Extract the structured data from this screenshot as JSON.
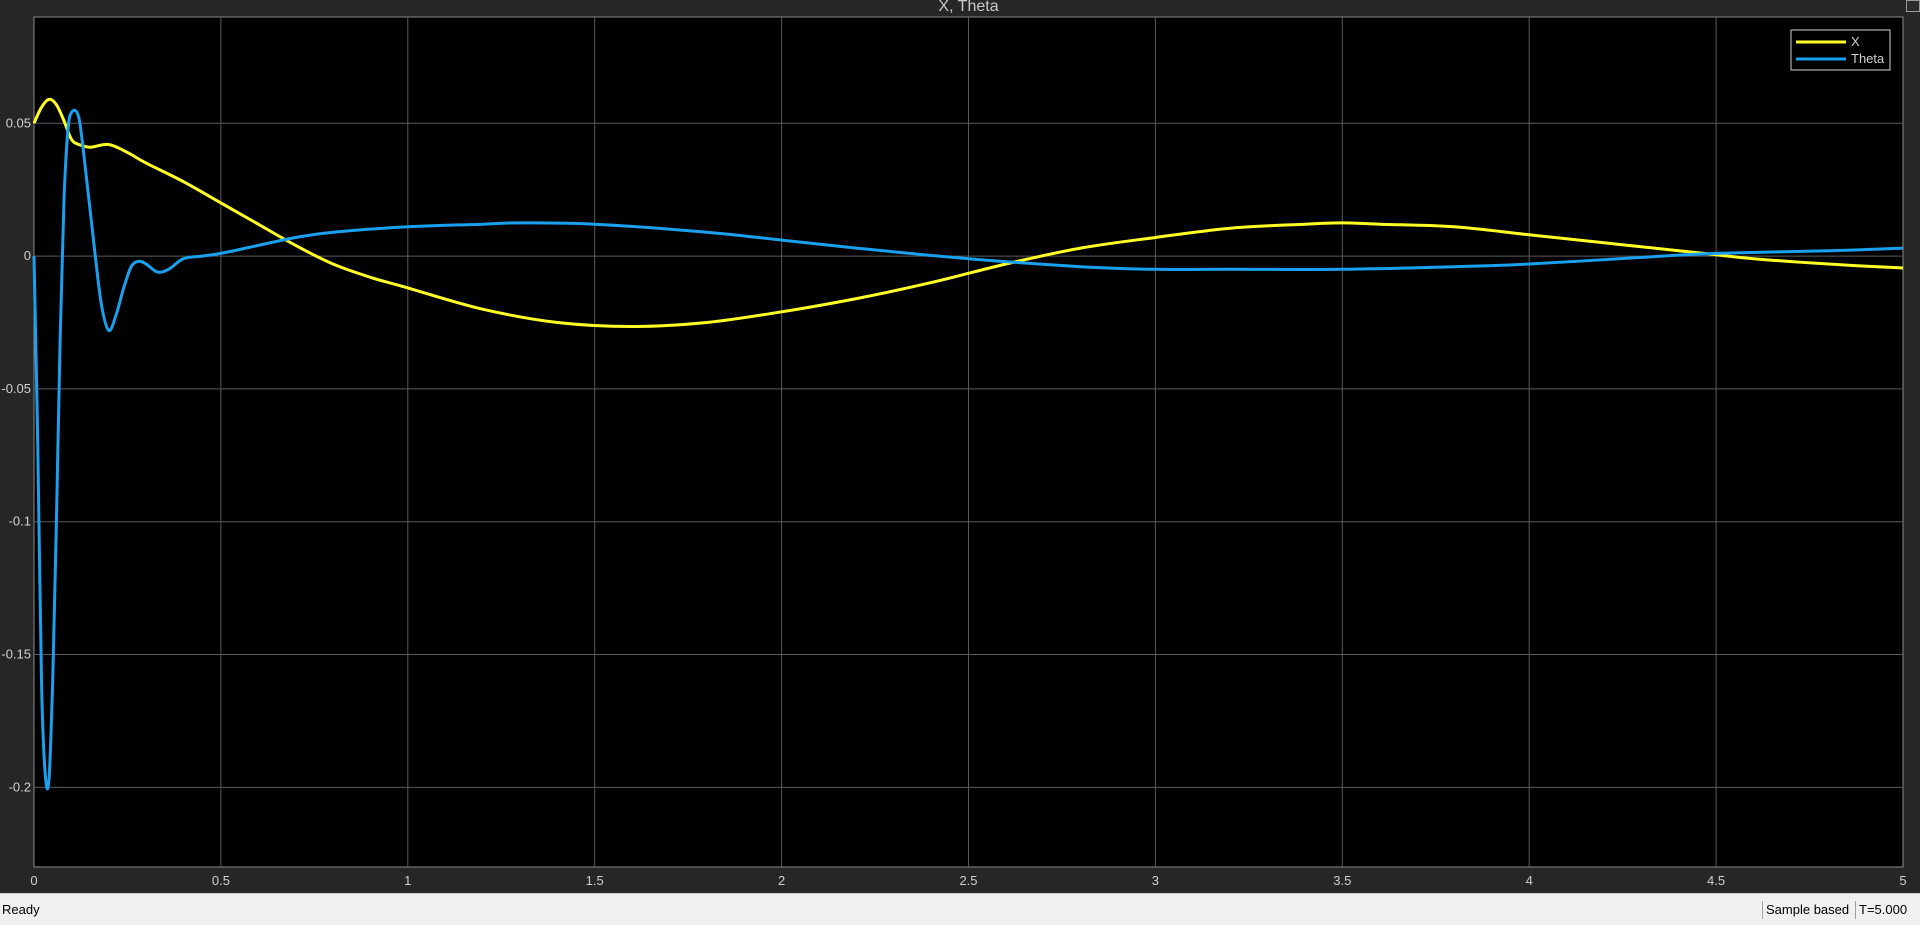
{
  "window": {
    "status": "Ready",
    "sample_mode": "Sample based",
    "time_display": "T=5.000"
  },
  "colors": {
    "plot_bg": "#000000",
    "frame_bg": "#262626",
    "grid": "#5a5a5a",
    "series_x": "#ffff26",
    "series_theta": "#1aa0ee"
  },
  "chart_data": {
    "type": "line",
    "title": "X, Theta",
    "xlabel": "",
    "ylabel": "",
    "xlim": [
      0,
      5
    ],
    "ylim": [
      -0.23,
      0.09
    ],
    "xticks": [
      0,
      0.5,
      1,
      1.5,
      2,
      2.5,
      3,
      3.5,
      4,
      4.5,
      5
    ],
    "xtick_labels": [
      "0",
      "0.5",
      "1",
      "1.5",
      "2",
      "2.5",
      "3",
      "3.5",
      "4",
      "4.5",
      "5"
    ],
    "yticks": [
      0.05,
      0,
      -0.05,
      -0.1,
      -0.15,
      -0.2
    ],
    "ytick_labels": [
      "0.05",
      "0",
      "-0.05",
      "-0.1",
      "-0.15",
      "-0.2"
    ],
    "grid": true,
    "legend_position": "top-right",
    "series": [
      {
        "name": "X",
        "color": "#ffff26",
        "x": [
          0,
          0.02,
          0.04,
          0.06,
          0.08,
          0.1,
          0.12,
          0.15,
          0.2,
          0.25,
          0.3,
          0.4,
          0.5,
          0.6,
          0.7,
          0.8,
          0.9,
          1.0,
          1.2,
          1.4,
          1.6,
          1.8,
          2.0,
          2.2,
          2.4,
          2.6,
          2.8,
          3.0,
          3.2,
          3.4,
          3.5,
          3.6,
          3.8,
          4.0,
          4.2,
          4.4,
          4.5,
          4.6,
          4.8,
          5.0
        ],
        "y": [
          0.05,
          0.056,
          0.059,
          0.057,
          0.051,
          0.044,
          0.042,
          0.041,
          0.042,
          0.039,
          0.035,
          0.028,
          0.02,
          0.012,
          0.004,
          -0.003,
          -0.008,
          -0.012,
          -0.02,
          -0.025,
          -0.0265,
          -0.025,
          -0.021,
          -0.016,
          -0.01,
          -0.003,
          0.003,
          0.007,
          0.0105,
          0.012,
          0.0125,
          0.012,
          0.011,
          0.008,
          0.005,
          0.002,
          0.0005,
          -0.001,
          -0.003,
          -0.0045
        ]
      },
      {
        "name": "Theta",
        "color": "#1aa0ee",
        "x": [
          0,
          0.01,
          0.02,
          0.03,
          0.04,
          0.05,
          0.06,
          0.07,
          0.08,
          0.09,
          0.1,
          0.12,
          0.14,
          0.16,
          0.18,
          0.2,
          0.22,
          0.24,
          0.26,
          0.28,
          0.3,
          0.33,
          0.36,
          0.4,
          0.45,
          0.5,
          0.6,
          0.7,
          0.8,
          1.0,
          1.2,
          1.3,
          1.5,
          1.8,
          2.0,
          2.2,
          2.5,
          2.8,
          3.0,
          3.2,
          3.5,
          3.8,
          4.0,
          4.3,
          4.5,
          4.8,
          5.0
        ],
        "y": [
          0.0,
          -0.07,
          -0.16,
          -0.195,
          -0.197,
          -0.16,
          -0.1,
          -0.03,
          0.02,
          0.046,
          0.054,
          0.052,
          0.03,
          0.005,
          -0.018,
          -0.028,
          -0.022,
          -0.012,
          -0.004,
          -0.002,
          -0.003,
          -0.006,
          -0.005,
          -0.001,
          0.0,
          0.001,
          0.004,
          0.007,
          0.009,
          0.011,
          0.012,
          0.0125,
          0.012,
          0.009,
          0.006,
          0.003,
          -0.001,
          -0.004,
          -0.005,
          -0.005,
          -0.005,
          -0.004,
          -0.003,
          -0.0005,
          0.001,
          0.002,
          0.003
        ]
      }
    ]
  }
}
